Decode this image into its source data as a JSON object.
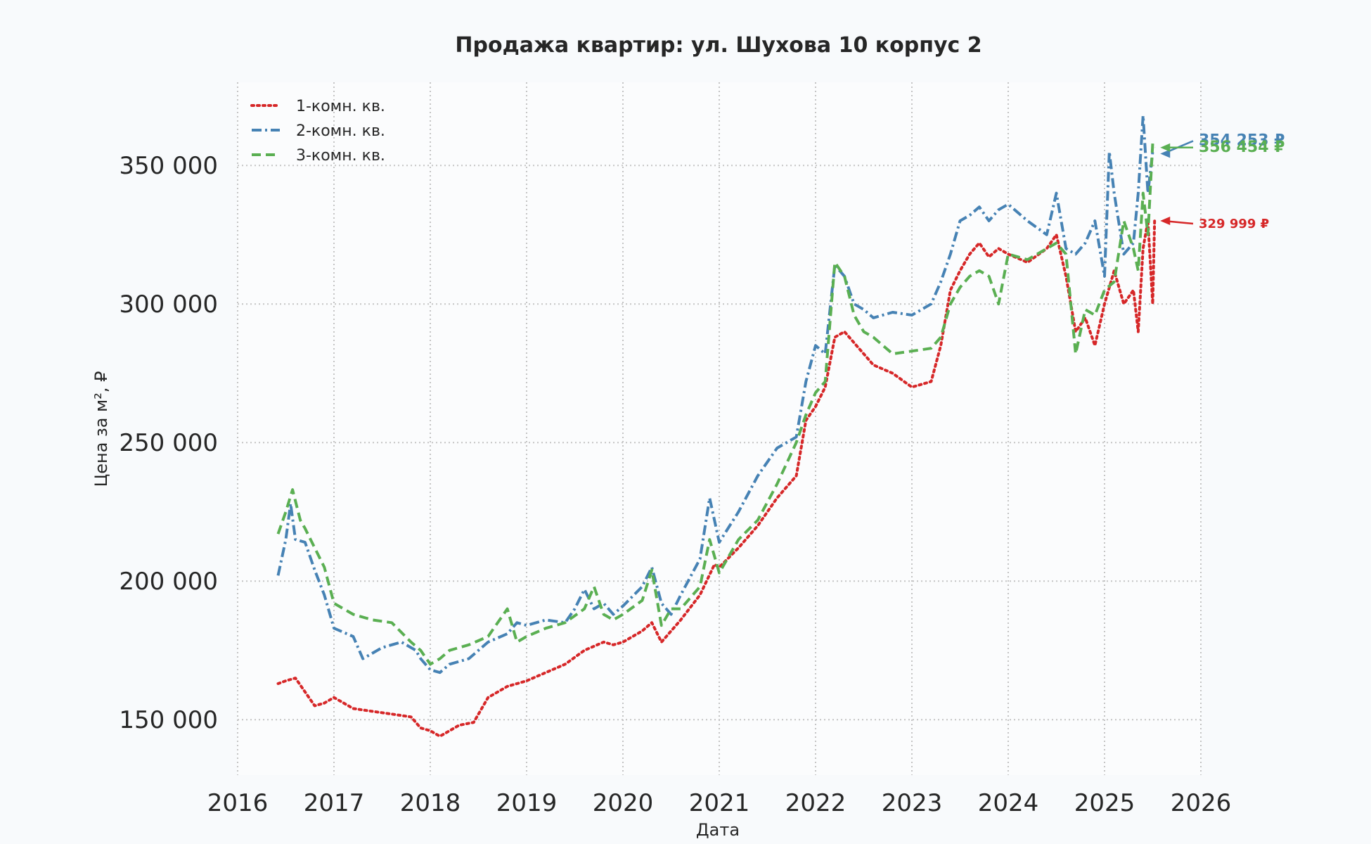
{
  "chart_data": {
    "type": "line",
    "title": "Продажа квартир: ул. Шухова 10 корпус 2",
    "xlabel": "Дата",
    "ylabel": "Цена за м², ₽",
    "xlim": [
      2016.0,
      2026.0
    ],
    "ylim": [
      130000,
      380000
    ],
    "x_ticks": [
      2016,
      2017,
      2018,
      2019,
      2020,
      2021,
      2022,
      2023,
      2024,
      2025,
      2026
    ],
    "x_tick_labels": [
      "2016",
      "2017",
      "2018",
      "2019",
      "2020",
      "2021",
      "2022",
      "2023",
      "2024",
      "2025",
      "2026"
    ],
    "y_ticks": [
      150000,
      200000,
      250000,
      300000,
      350000
    ],
    "y_tick_labels": [
      "150 000",
      "200 000",
      "250 000",
      "300 000",
      "350 000"
    ],
    "grid": true,
    "legend_position": "top-left",
    "series": [
      {
        "name": "1-комн. кв.",
        "color": "#d62728",
        "style": "dotted",
        "x": [
          2016.42,
          2016.5,
          2016.6,
          2016.7,
          2016.8,
          2016.9,
          2017.0,
          2017.2,
          2017.4,
          2017.6,
          2017.8,
          2017.9,
          2018.0,
          2018.1,
          2018.2,
          2018.3,
          2018.45,
          2018.6,
          2018.8,
          2018.9,
          2019.0,
          2019.2,
          2019.4,
          2019.6,
          2019.8,
          2019.9,
          2020.0,
          2020.2,
          2020.3,
          2020.4,
          2020.6,
          2020.8,
          2020.95,
          2021.0,
          2021.2,
          2021.4,
          2021.6,
          2021.8,
          2021.9,
          2022.0,
          2022.1,
          2022.2,
          2022.3,
          2022.4,
          2022.5,
          2022.6,
          2022.8,
          2023.0,
          2023.2,
          2023.3,
          2023.4,
          2023.5,
          2023.6,
          2023.7,
          2023.8,
          2023.9,
          2024.0,
          2024.2,
          2024.4,
          2024.5,
          2024.6,
          2024.7,
          2024.8,
          2024.9,
          2025.0,
          2025.1,
          2025.2,
          2025.3,
          2025.35,
          2025.4,
          2025.45,
          2025.5,
          2025.52
        ],
        "y": [
          163000,
          164000,
          165000,
          160000,
          155000,
          156000,
          158000,
          154000,
          153000,
          152000,
          151000,
          147000,
          146000,
          144000,
          146000,
          148000,
          149000,
          158000,
          162000,
          163000,
          164000,
          167000,
          170000,
          175000,
          178000,
          177000,
          178000,
          182000,
          185000,
          178000,
          186000,
          195000,
          206000,
          205000,
          212000,
          220000,
          230000,
          238000,
          258000,
          263000,
          270000,
          288000,
          290000,
          286000,
          282000,
          278000,
          275000,
          270000,
          272000,
          285000,
          305000,
          312000,
          318000,
          322000,
          317000,
          320000,
          318000,
          315000,
          320000,
          325000,
          310000,
          290000,
          295000,
          285000,
          300000,
          312000,
          300000,
          305000,
          290000,
          320000,
          330000,
          300000,
          329999
        ]
      },
      {
        "name": "2-комн. кв.",
        "color": "#4682b4",
        "style": "dashdot",
        "x": [
          2016.42,
          2016.5,
          2016.55,
          2016.6,
          2016.7,
          2016.8,
          2016.9,
          2017.0,
          2017.2,
          2017.3,
          2017.5,
          2017.7,
          2017.85,
          2017.9,
          2018.0,
          2018.1,
          2018.2,
          2018.4,
          2018.6,
          2018.8,
          2018.9,
          2019.0,
          2019.2,
          2019.4,
          2019.5,
          2019.6,
          2019.7,
          2019.8,
          2019.9,
          2020.0,
          2020.2,
          2020.3,
          2020.4,
          2020.5,
          2020.6,
          2020.8,
          2020.9,
          2021.0,
          2021.2,
          2021.4,
          2021.6,
          2021.8,
          2021.9,
          2022.0,
          2022.1,
          2022.2,
          2022.3,
          2022.4,
          2022.5,
          2022.6,
          2022.8,
          2023.0,
          2023.2,
          2023.3,
          2023.4,
          2023.5,
          2023.6,
          2023.7,
          2023.8,
          2023.9,
          2024.0,
          2024.2,
          2024.4,
          2024.5,
          2024.6,
          2024.7,
          2024.8,
          2024.9,
          2025.0,
          2025.05,
          2025.1,
          2025.2,
          2025.3,
          2025.35,
          2025.4,
          2025.45,
          2025.5,
          2025.52
        ],
        "y": [
          202000,
          215000,
          228000,
          215000,
          214000,
          204000,
          195000,
          183000,
          180000,
          172000,
          176000,
          178000,
          175000,
          172000,
          168000,
          167000,
          170000,
          172000,
          178000,
          181000,
          185000,
          184000,
          186000,
          185000,
          190000,
          197000,
          190000,
          192000,
          188000,
          191000,
          198000,
          205000,
          192000,
          188000,
          195000,
          208000,
          230000,
          214000,
          225000,
          238000,
          248000,
          252000,
          272000,
          285000,
          282000,
          314000,
          310000,
          300000,
          298000,
          295000,
          297000,
          296000,
          300000,
          308000,
          318000,
          330000,
          332000,
          335000,
          330000,
          334000,
          336000,
          330000,
          325000,
          340000,
          320000,
          318000,
          322000,
          330000,
          310000,
          355000,
          340000,
          318000,
          322000,
          340000,
          368000,
          340000,
          355000,
          354253
        ]
      },
      {
        "name": "3-комн. кв.",
        "color": "#5aaf52",
        "style": "dashed",
        "x": [
          2016.42,
          2016.5,
          2016.57,
          2016.65,
          2016.7,
          2016.8,
          2016.9,
          2017.0,
          2017.2,
          2017.4,
          2017.6,
          2017.8,
          2017.9,
          2018.0,
          2018.1,
          2018.2,
          2018.4,
          2018.6,
          2018.8,
          2018.9,
          2019.0,
          2019.2,
          2019.4,
          2019.6,
          2019.7,
          2019.8,
          2019.9,
          2020.0,
          2020.2,
          2020.3,
          2020.4,
          2020.5,
          2020.6,
          2020.8,
          2020.9,
          2021.0,
          2021.2,
          2021.4,
          2021.6,
          2021.8,
          2021.9,
          2022.0,
          2022.1,
          2022.2,
          2022.3,
          2022.4,
          2022.5,
          2022.6,
          2022.8,
          2023.0,
          2023.2,
          2023.3,
          2023.4,
          2023.5,
          2023.6,
          2023.7,
          2023.8,
          2023.9,
          2024.0,
          2024.2,
          2024.4,
          2024.5,
          2024.6,
          2024.7,
          2024.8,
          2024.9,
          2025.0,
          2025.1,
          2025.2,
          2025.3,
          2025.35,
          2025.4,
          2025.45,
          2025.5,
          2025.52
        ],
        "y": [
          217000,
          225000,
          233000,
          222000,
          219000,
          212000,
          205000,
          192000,
          188000,
          186000,
          185000,
          178000,
          175000,
          170000,
          172000,
          175000,
          177000,
          180000,
          190000,
          178000,
          180000,
          183000,
          185000,
          190000,
          198000,
          188000,
          186000,
          188000,
          193000,
          204000,
          184000,
          190000,
          190000,
          198000,
          215000,
          203000,
          215000,
          222000,
          235000,
          250000,
          260000,
          268000,
          272000,
          315000,
          310000,
          296000,
          290000,
          288000,
          282000,
          283000,
          284000,
          288000,
          300000,
          306000,
          310000,
          312000,
          310000,
          300000,
          318000,
          316000,
          320000,
          322000,
          318000,
          282000,
          298000,
          296000,
          305000,
          308000,
          330000,
          320000,
          312000,
          340000,
          325000,
          358000,
          356454
        ]
      }
    ],
    "end_labels": [
      {
        "text": "354 253 ₽",
        "value": 354253,
        "color": "#4682b4"
      },
      {
        "text": "356 454 ₽",
        "value": 356454,
        "color": "#5aaf52"
      },
      {
        "text": "329 999 ₽",
        "value": 329999,
        "color": "#d62728"
      }
    ]
  }
}
